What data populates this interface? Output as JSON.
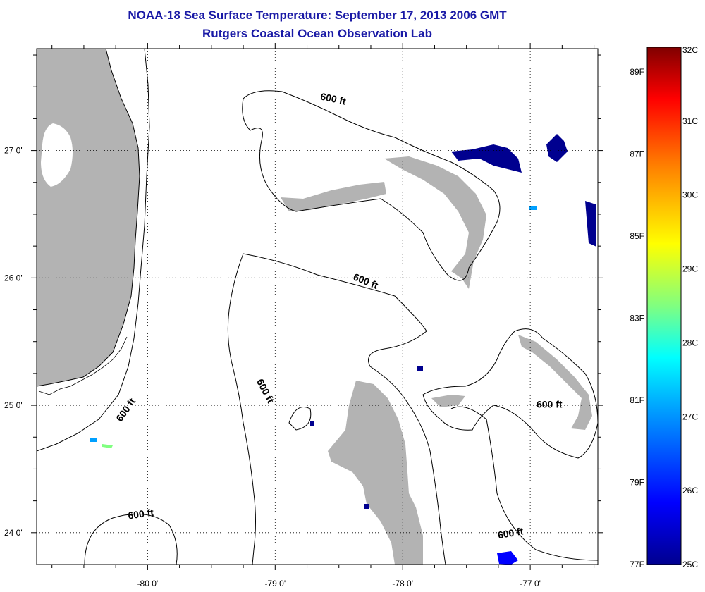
{
  "title_line1": "NOAA-18 Sea Surface Temperature:  September 17, 2013 2006 GMT",
  "title_line2": "Rutgers Coastal Ocean Observation Lab",
  "lat_ticks": [
    {
      "label": "27 0'",
      "value": 27
    },
    {
      "label": "26 0'",
      "value": 26
    },
    {
      "label": "25 0'",
      "value": 25
    },
    {
      "label": "24 0'",
      "value": 24
    }
  ],
  "lon_ticks": [
    {
      "label": "-80 0'",
      "value": -80
    },
    {
      "label": "-79 0'",
      "value": -79
    },
    {
      "label": "-78 0'",
      "value": -78
    },
    {
      "label": "-77 0'",
      "value": -77
    }
  ],
  "extent": {
    "lon_min": -80.87,
    "lon_max": -76.47,
    "lat_min": 23.75,
    "lat_max": 27.8
  },
  "contour_labels": [
    {
      "text": "600 ft",
      "lon": -78.55,
      "lat": 27.38
    },
    {
      "text": "600 ft",
      "lon": -78.3,
      "lat": 25.95
    },
    {
      "text": "600 ft",
      "lon": -79.1,
      "lat": 25.1
    },
    {
      "text": "600 ft",
      "lon": -80.15,
      "lat": 24.95
    },
    {
      "text": "600 ft",
      "lon": -76.85,
      "lat": 24.98
    },
    {
      "text": "600 ft",
      "lon": -80.05,
      "lat": 24.12
    },
    {
      "text": "600 ft",
      "lon": -77.15,
      "lat": 23.97
    }
  ],
  "colorbar": {
    "celsius": [
      "32C",
      "31C",
      "30C",
      "29C",
      "28C",
      "27C",
      "26C",
      "25C"
    ],
    "fahrenheit": [
      "89F",
      "87F",
      "85F",
      "83F",
      "81F",
      "79F",
      "77F"
    ],
    "c_min": 25,
    "c_max": 32,
    "colors": [
      "#00008f",
      "#0000ff",
      "#00a0ff",
      "#00ffff",
      "#80ff80",
      "#ffff00",
      "#ff8000",
      "#ff0000",
      "#800000"
    ]
  },
  "colors": {
    "land": "#b3b3b3",
    "cloud_mask": "#ffffff",
    "title": "#1a1aa6"
  }
}
